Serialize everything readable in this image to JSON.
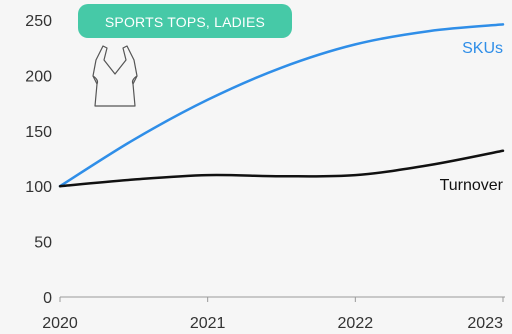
{
  "chart_data": {
    "type": "line",
    "title": "SPORTS TOPS, LADIES",
    "xlabel": "",
    "ylabel": "",
    "x": [
      2020,
      2020.5,
      2021,
      2021.5,
      2022,
      2022.5,
      2023
    ],
    "xticks": [
      "2020",
      "2021",
      "2022",
      "2023"
    ],
    "yticks": [
      "0",
      "50",
      "100",
      "150",
      "200",
      "250"
    ],
    "xlim": [
      2020,
      2023
    ],
    "ylim": [
      0,
      250
    ],
    "grid": false,
    "series": [
      {
        "name": "SKUs",
        "color": "#2f8ee8",
        "values": [
          100,
          142,
          178,
          207,
          228,
          240,
          246
        ]
      },
      {
        "name": "Turnover",
        "color": "#111111",
        "values": [
          100,
          106,
          110,
          109,
          110,
          119,
          132
        ]
      }
    ]
  },
  "badge": {
    "color": "#46c9a7",
    "icon": "tank-top-icon"
  }
}
